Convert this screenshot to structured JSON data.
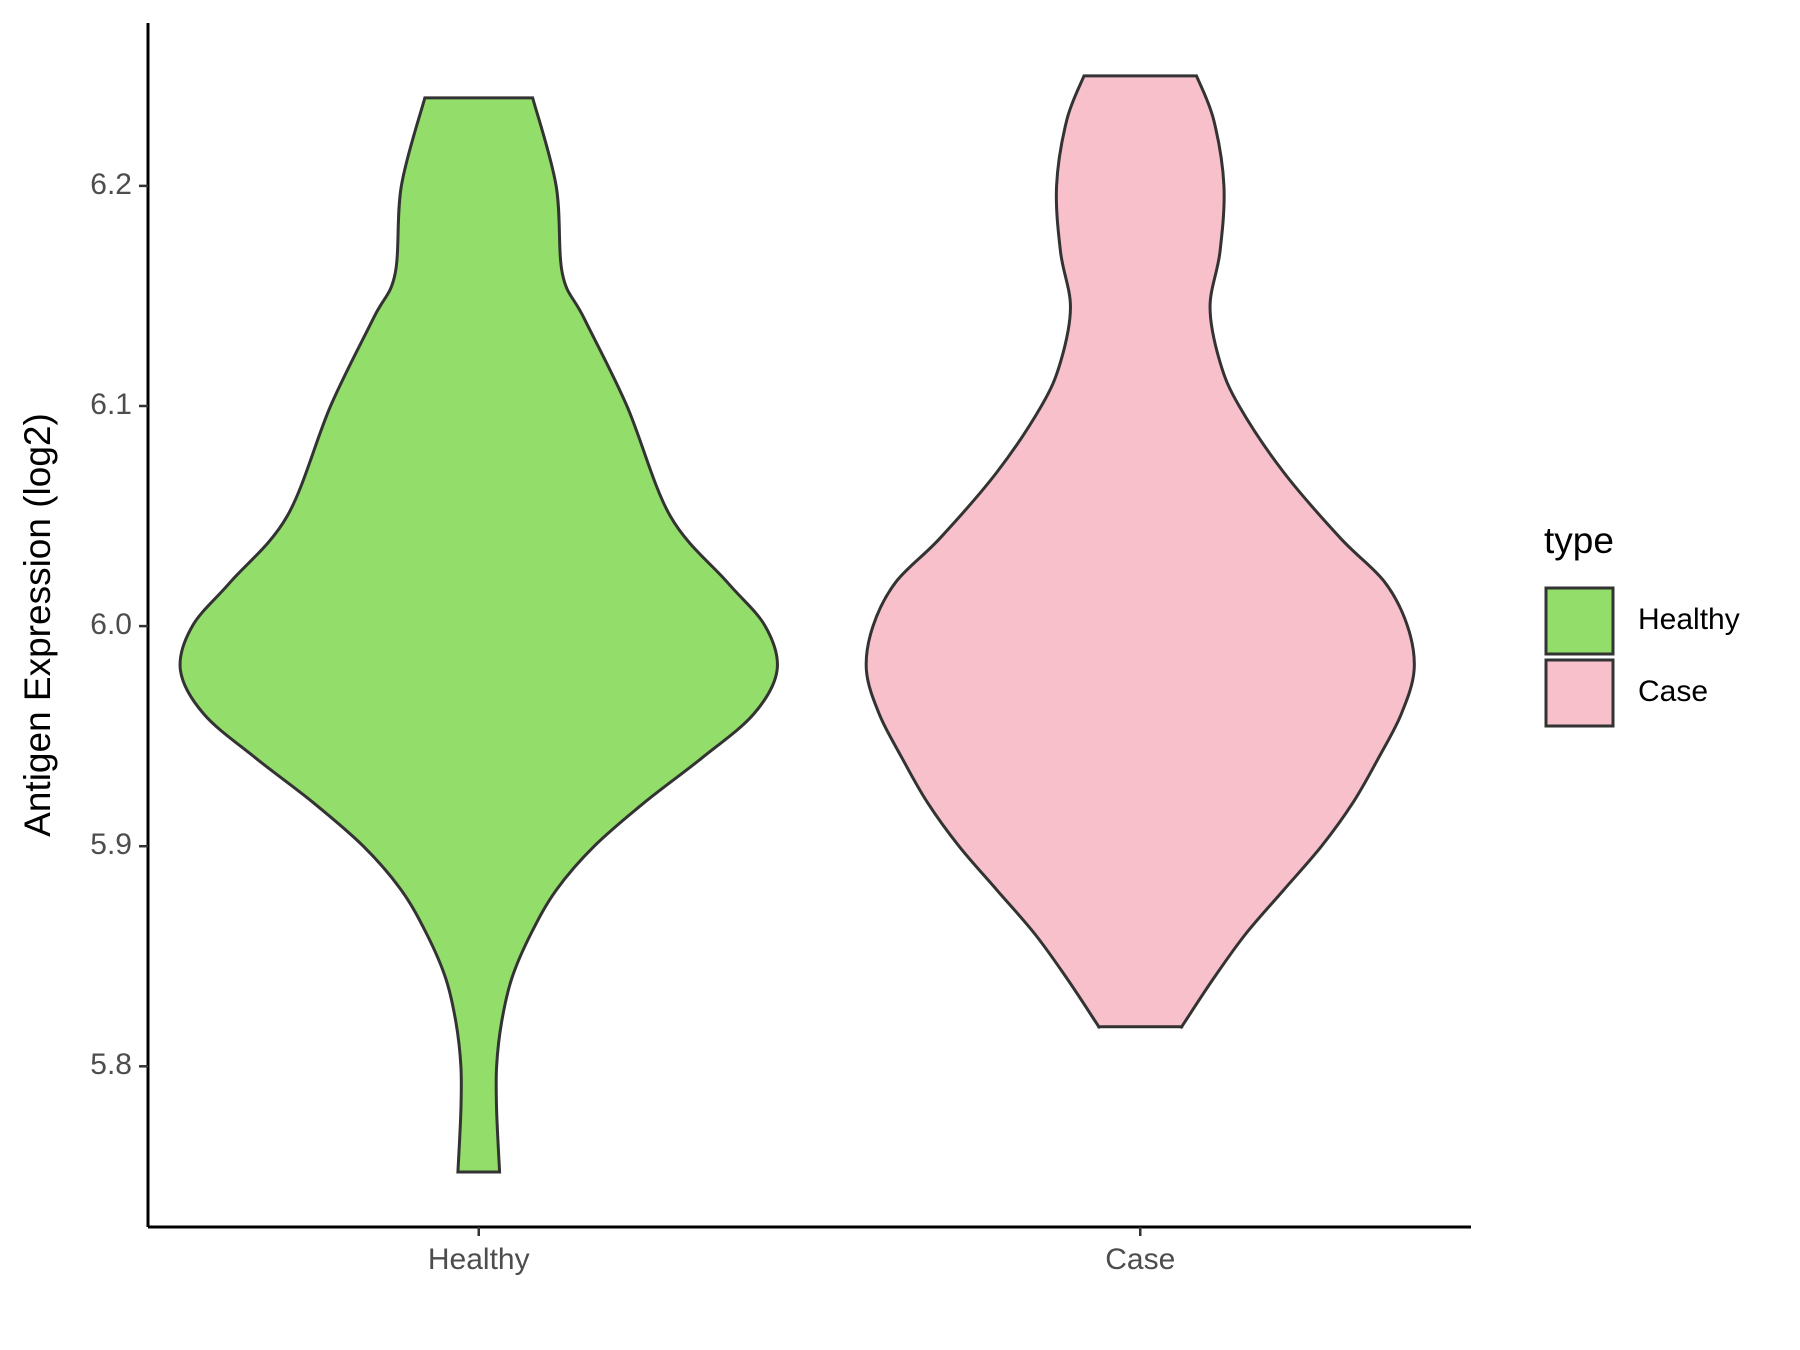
{
  "chart_data": {
    "type": "violin",
    "y_label": "Antigen Expression (log2)",
    "categories": [
      "Healthy",
      "Case"
    ],
    "legend_title": "type",
    "legend_position": "right",
    "grid": false,
    "ylim": [
      5.727,
      6.274
    ],
    "yticks": [
      5.8,
      5.9,
      {
        "value": 6,
        "label": "6.0"
      },
      6.1,
      6.2
    ],
    "series": [
      {
        "name": "Healthy",
        "color": "#93dd6b",
        "y": [
          6.24,
          6.2,
          6.16,
          6.14,
          6.1,
          6.05,
          6.02,
          6.0,
          5.98,
          5.96,
          5.94,
          5.92,
          5.9,
          5.88,
          5.86,
          5.84,
          5.82,
          5.8,
          5.78,
          5.752
        ],
        "width": [
          0.163,
          0.234,
          0.253,
          0.318,
          0.448,
          0.579,
          0.751,
          0.866,
          0.902,
          0.831,
          0.674,
          0.502,
          0.349,
          0.234,
          0.157,
          0.1,
          0.069,
          0.054,
          0.054,
          0.063
        ]
      },
      {
        "name": "Case",
        "color": "#f7c0cb",
        "y": [
          6.25,
          6.23,
          6.2,
          6.17,
          6.145,
          6.12,
          6.1,
          6.07,
          6.04,
          6.02,
          6.0,
          5.98,
          5.96,
          5.94,
          5.92,
          5.9,
          5.88,
          5.86,
          5.84,
          5.82,
          5.818
        ],
        "width": [
          0.17,
          0.222,
          0.253,
          0.241,
          0.211,
          0.241,
          0.299,
          0.433,
          0.605,
          0.739,
          0.808,
          0.828,
          0.789,
          0.72,
          0.644,
          0.548,
          0.433,
          0.318,
          0.222,
          0.134,
          0.126
        ]
      }
    ]
  }
}
